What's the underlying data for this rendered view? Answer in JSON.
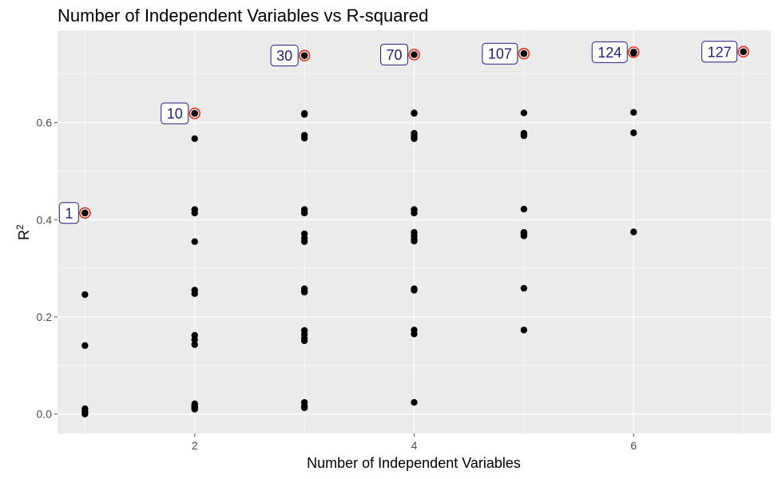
{
  "chart_data": {
    "type": "scatter",
    "title": "Number of Independent Variables vs R-squared",
    "xlabel": "Number of Independent Variables",
    "ylabel": {
      "base": "R",
      "sup": "2"
    },
    "xlim": [
      0.75,
      7.25
    ],
    "ylim": [
      -0.04,
      0.79
    ],
    "xticks": [
      2,
      4,
      6
    ],
    "xtick_labels": [
      "2",
      "4",
      "6"
    ],
    "yticks": [
      0.0,
      0.2,
      0.4,
      0.6
    ],
    "ytick_labels": [
      "0.0",
      "0.2",
      "0.4",
      "0.6"
    ],
    "grid": true,
    "background": "#ebebeb",
    "gridline_color": "#ffffff",
    "point_color": "#000000",
    "highlight_color": "#e0341f",
    "label_text_color": "#1f1f7a",
    "label_border_color": "#1f1f7a",
    "series": [
      {
        "x": [
          1,
          1,
          1,
          1,
          1,
          1,
          2,
          2,
          2,
          2,
          2,
          2,
          2,
          2,
          2,
          2,
          2,
          2,
          2,
          2,
          3,
          3,
          3,
          3,
          3,
          3,
          3,
          3,
          3,
          3,
          3,
          3,
          3,
          3,
          3,
          3,
          3,
          3,
          3,
          3,
          3,
          4,
          4,
          4,
          4,
          4,
          4,
          4,
          4,
          4,
          4,
          4,
          4,
          4,
          4,
          4,
          4,
          4,
          5,
          5,
          5,
          5,
          5,
          5,
          5,
          5,
          5,
          5,
          6,
          6,
          6,
          6,
          6,
          7
        ],
        "y": [
          0.414,
          0.246,
          0.141,
          0.011,
          0.0,
          0.005,
          0.619,
          0.567,
          0.421,
          0.414,
          0.355,
          0.255,
          0.248,
          0.162,
          0.153,
          0.143,
          0.021,
          0.013,
          0.01,
          0.016,
          0.738,
          0.619,
          0.617,
          0.574,
          0.568,
          0.421,
          0.414,
          0.371,
          0.362,
          0.355,
          0.258,
          0.251,
          0.172,
          0.164,
          0.156,
          0.151,
          0.024,
          0.017,
          0.013,
          0.415,
          0.253,
          0.74,
          0.619,
          0.578,
          0.572,
          0.567,
          0.421,
          0.414,
          0.374,
          0.367,
          0.36,
          0.258,
          0.255,
          0.173,
          0.165,
          0.024,
          0.356,
          0.62,
          0.742,
          0.62,
          0.578,
          0.573,
          0.422,
          0.374,
          0.367,
          0.259,
          0.173,
          0.371,
          0.745,
          0.743,
          0.621,
          0.579,
          0.375,
          0.746
        ]
      }
    ],
    "highlighted": [
      {
        "x": 1,
        "y": 0.414,
        "label": "1"
      },
      {
        "x": 2,
        "y": 0.619,
        "label": "10"
      },
      {
        "x": 3,
        "y": 0.738,
        "label": "30"
      },
      {
        "x": 4,
        "y": 0.74,
        "label": "70"
      },
      {
        "x": 5,
        "y": 0.742,
        "label": "107"
      },
      {
        "x": 6,
        "y": 0.745,
        "label": "124"
      },
      {
        "x": 7,
        "y": 0.746,
        "label": "127"
      }
    ]
  }
}
